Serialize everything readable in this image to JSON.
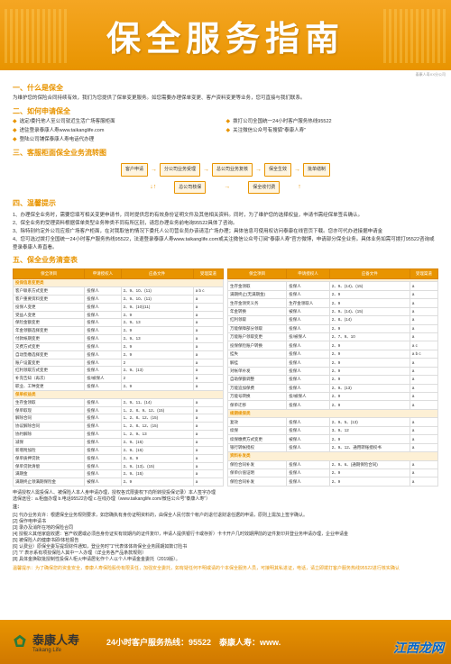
{
  "header": {
    "title": "保全服务指南"
  },
  "corner_note": "泰康人寿XX分公司",
  "sections": {
    "s1": {
      "title": "一、什么是保全",
      "text": "为维护您的保险合同持续有效，我们为您提供了保单变更服务。如您需要办理保单变更、客户资料变更等业务，您可直接与我们联系。"
    },
    "s2": {
      "title": "二、如何申请保全",
      "channels": [
        "选定/委托他人至公司就近生活广场客服柜面",
        "拨打公司全国统一24小时客户服务热线95522",
        "进驻登录泰康人寿www.taikanglife.com",
        "关注微信公众号有搜狐\"泰康人寿\"",
        "登陆公司铺保泰康人寿电话代办理"
      ]
    },
    "s3": {
      "title": "三、客服柜面保全业务流转图",
      "flow": {
        "row1": [
          "客户申请",
          "分公司业务受理",
          "总公司业务复核",
          "保全生效",
          "批单缮制"
        ],
        "row2": [
          "总公司核保",
          "保全收付费"
        ]
      }
    },
    "s4": {
      "title": "四、温馨提示",
      "tips": [
        "1、办理保全业务时，需要您填写相关变更申请书，同时提供您的有效身份证明文件及其他相关资料。同时，为了维护您的选择权益，申请书需经保单签名确认。",
        "2、保全业务的受理资料根据保单类型业务种类不同有所区别，请您办理业务前电询95522具体了咨询。",
        "3、除特别约定外公司应按广场客户柜面，在对我取信的情况下委托人公司营业员办该请活广场办理；具体信息可使用权访问泰康在线官页下载。您亦可代办进接据申请金",
        "4、您可选过拨打全国统一24小时客户服务热线95522，法退登录泰康人寿www.taikanglife.com或关注微信公众号订阅\"泰康人寿\"官方微博，申请部分保全业务。具体业务如需可拨打95522咨询或登录泰康人寿直看。"
      ]
    },
    "s5": {
      "title": "五、保全业务清查表",
      "headers": [
        "保全项目",
        "申请授权人",
        "应备文件",
        "受理渠道"
      ],
      "categories": {
        "cat1": "投保信息变更类",
        "cat2": "保单权益类",
        "cat3": "续期续保类",
        "cat4": "资料补发类"
      },
      "left": [
        {
          "cat": "cat1"
        },
        {
          "c": [
            "客户联系方式变更",
            "投保人",
            "2、9、10、(11)",
            "a b c"
          ]
        },
        {
          "c": [
            "客户重要资料变更",
            "投保人",
            "2、9、10、(11)",
            "a"
          ]
        },
        {
          "c": [
            "投保人变更",
            "投保人",
            "2、9、(10)(11)",
            "a"
          ]
        },
        {
          "c": [
            "受益人变更",
            "投保人",
            "2、9",
            "a"
          ]
        },
        {
          "c": [
            "保险金额变更",
            "投保人",
            "2、9、13",
            "a"
          ]
        },
        {
          "c": [
            "年金领额选择变更",
            "投保人",
            "2、9",
            "a"
          ]
        },
        {
          "c": [
            "付款帐期变更",
            "投保人",
            "2、9、13",
            "a"
          ]
        },
        {
          "c": [
            "交费方式变更",
            "投保人",
            "2、9",
            "a"
          ]
        },
        {
          "c": [
            "自动垫缴选择变更",
            "投保人",
            "2、9",
            "a"
          ]
        },
        {
          "c": [
            "账户设置变更",
            "投保人",
            "2",
            "a"
          ]
        },
        {
          "c": [
            "红利领取方式变更",
            "投保人",
            "2、9、(13)",
            "a"
          ]
        },
        {
          "c": [
            "补充告知（再次）",
            "投/被保人",
            "2",
            "a"
          ]
        },
        {
          "c": [
            "职业、工种变更",
            "投保人",
            "2、9",
            "a"
          ]
        },
        {
          "cat": "cat2"
        },
        {
          "c": [
            "生存金领取",
            "投保人",
            "2、9、11、(14)",
            "a"
          ]
        },
        {
          "c": [
            "保单取现",
            "投保人",
            "1、2、8、9、12、(15)",
            "a"
          ]
        },
        {
          "c": [
            "解除合同",
            "投保人",
            "1、2、8、12、(15)",
            "a"
          ]
        },
        {
          "c": [
            "协议解除合同",
            "投保人",
            "1、2、8、12、(15)",
            "a"
          ]
        },
        {
          "c": [
            "协约解除",
            "投保人",
            "1、2、9、13",
            "a"
          ]
        },
        {
          "c": [
            "减保",
            "投保人",
            "2、9、(15)",
            "a"
          ]
        },
        {
          "c": [
            "新增附加险",
            "投保人",
            "2、9、(15)",
            "a"
          ]
        },
        {
          "c": [
            "保单质押贷款",
            "投保人",
            "2、8、9",
            "a"
          ]
        },
        {
          "c": [
            "保单贷款清偿",
            "投保人",
            "2、9、(13)、(15)",
            "a"
          ]
        },
        {
          "c": [
            "满期金",
            "投保人",
            "2、9、(15)",
            "a"
          ]
        },
        {
          "c": [
            "满期终止领满期保险金",
            "被保人",
            "2、9",
            "a"
          ]
        }
      ],
      "right": [
        {
          "cat": "cat2b",
          "label": ""
        },
        {
          "c": [
            "生存金领取",
            "投保人",
            "2、9、(14)、(15)",
            "a"
          ]
        },
        {
          "c": [
            "满期终止(无满期金)",
            "投保人",
            "2、9",
            "a"
          ]
        },
        {
          "c": [
            "生存金领奖义务",
            "生存金领取人",
            "2、9",
            "a"
          ]
        },
        {
          "c": [
            "年金转换",
            "被保人",
            "2、9、(14)、(15)",
            "a"
          ]
        },
        {
          "c": [
            "红利领取",
            "投保人",
            "2、8、(14)",
            "a"
          ]
        },
        {
          "c": [
            "万能保障部分领取",
            "投保人",
            "2、9",
            "a"
          ]
        },
        {
          "c": [
            "万能账户领取变更",
            "投/被保人",
            "2、7、9、10",
            "a"
          ]
        },
        {
          "c": [
            "投保保险账户转换",
            "投保人",
            "2、9",
            "a c"
          ]
        },
        {
          "c": [
            "挂失",
            "投保人",
            "2、9",
            "a b c"
          ]
        },
        {
          "c": [
            "解挂",
            "投保人",
            "2、9",
            "a"
          ]
        },
        {
          "c": [
            "对帐单补发",
            "投保人",
            "2、9",
            "a"
          ]
        },
        {
          "c": [
            "自助保额调整",
            "投保人",
            "2、9",
            "a"
          ]
        },
        {
          "c": [
            "万能追加保费",
            "投保人",
            "2、9、(13)",
            "a"
          ]
        },
        {
          "c": [
            "万能号转换",
            "投/被保人",
            "2、9",
            "a"
          ]
        },
        {
          "c": [
            "保单迁移",
            "投保人",
            "2、9",
            "a"
          ]
        },
        {
          "cat": "cat3"
        },
        {
          "c": [
            "复效",
            "投保人",
            "2、9、5、(13)",
            "a"
          ]
        },
        {
          "c": [
            "续保",
            "投保人",
            "3、9、12",
            "a"
          ]
        },
        {
          "c": [
            "续保缴费方式变更",
            "被保人",
            "2、9",
            "a"
          ]
        },
        {
          "c": [
            "银行转帐授权",
            "投保人",
            "2、9、12、通用转账授权书",
            "a"
          ]
        },
        {
          "cat": "cat4"
        },
        {
          "c": [
            "保险合同补发",
            "投保人",
            "2、9、6、(通期保险合同)",
            "a"
          ]
        },
        {
          "c": [
            "保单价值证明",
            "投保人",
            "2、9",
            "a"
          ]
        },
        {
          "c": [
            "保险合同补发",
            "投保人",
            "2、9",
            "a"
          ]
        }
      ]
    },
    "notes": {
      "line1": "申请授权人需投保人、被保险人本人身申请办理，授权各式限委权下向所转授投保记录）本人签字办理",
      "line2": "选保途径：a.柜面办理 b.电话95522办理 c.在线办理（www.taikanglife.com/微信公众号\"泰康人寿\"）",
      "title": "注：",
      "items": [
        "[1] 代办业务充许：根据保全业务规则要求，如您确执有身份证明资料的，由保全人民付款个帐户的退付退财退任据的申请，原则上需加上签字确认。",
        "[2] 保作电申请书",
        "[3] 录办及消所在地的保险合同",
        "[4] 授税义其他家庭收据：官产收据或必须自身份证实有效期内的证件复印，申请人提供银行卡或存折）卡卡开户几时效期押前的证件复印并登业务申请办理，企业申请金",
        "[5] 被保险人的健康书即/体检报告",
        "[6] 认费业）原保全委写提现财件通知，登业务时\"1\"代表体体商保全业务顾期如数订险书",
        "[7] \"/\" 表示系有项授保险人其中一人办理（详业务各产品条款规则）",
        "[8] 具体金换取批授制性投保人柜火申请居化作个人以个人申请金金委托（2019版）。"
      ],
      "footer_note": "温馨提示：为了确保您的资金安全，泰康人寿保险股份有限责任，加强安全委托，如有疑任何不明或请的个本保全服务人员，可接明其私进证，电话，请立即拨打客户服务热线95522进行核实确认"
    }
  },
  "footer": {
    "logo_cn": "泰康人寿",
    "logo_en": "Taikang Life",
    "info": "24小时客户服务热线：95522　泰康人寿：www."
  },
  "watermark": "江西龙网",
  "colors": {
    "primary": "#e89400",
    "header_bg": "#f5a623",
    "text": "#333333",
    "table_header": "#e89400"
  }
}
